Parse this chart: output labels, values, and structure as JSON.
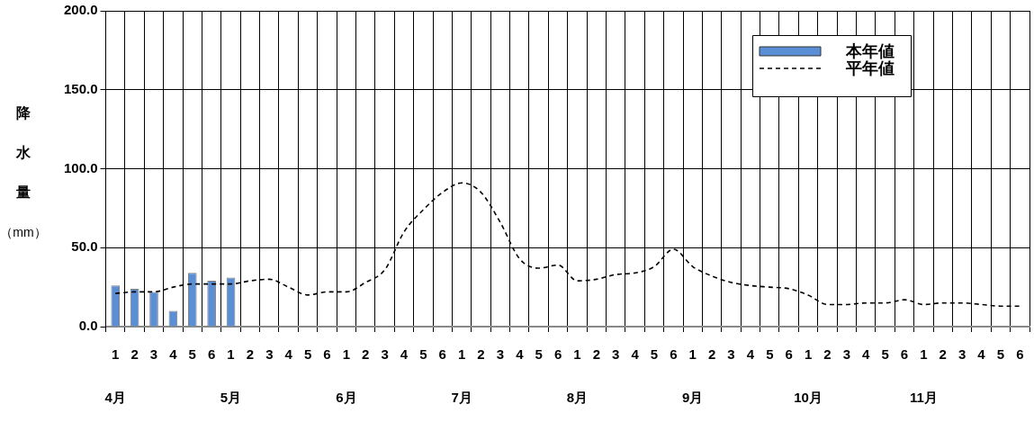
{
  "chart_data": {
    "type": "bar",
    "ylabel": "降水量（mm）",
    "categories": [
      "1\n4月",
      "2",
      "3",
      "4",
      "5",
      "6",
      "1\n5月",
      "2",
      "3",
      "4",
      "5",
      "6",
      "1\n6月",
      "2",
      "3",
      "4",
      "5",
      "6",
      "1\n7月",
      "2",
      "3",
      "4",
      "5",
      "6",
      "1\n8月",
      "2",
      "3",
      "4",
      "5",
      "6",
      "1\n9月",
      "2",
      "3",
      "4",
      "5",
      "6",
      "1\n10月",
      "2",
      "3",
      "4",
      "5",
      "6",
      "1\n11月",
      "2",
      "3",
      "4",
      "5",
      "6"
    ],
    "series": [
      {
        "name": "本年値",
        "color": "#5b8fd5",
        "values": [
          26,
          24,
          22,
          10,
          34,
          29,
          31,
          null,
          null,
          null,
          null,
          null,
          null,
          null,
          null,
          null,
          null,
          null,
          null,
          null,
          null,
          null,
          null,
          null,
          null,
          null,
          null,
          null,
          null,
          null,
          null,
          null,
          null,
          null,
          null,
          null,
          null,
          null,
          null,
          null,
          null,
          null,
          null,
          null,
          null,
          null,
          null,
          null
        ]
      },
      {
        "name": "平年値",
        "type": "line",
        "color": "#000000",
        "line_style": "dashed",
        "marker": "none",
        "values": [
          21,
          22,
          22,
          25,
          27,
          27,
          27,
          29,
          30,
          25,
          20,
          22,
          22,
          28,
          36,
          60,
          74,
          85,
          91,
          85,
          66,
          43,
          37,
          39,
          29,
          30,
          33,
          34,
          38,
          49,
          38,
          32,
          28,
          26,
          25,
          24,
          20,
          14,
          14,
          15,
          15,
          17,
          14,
          15,
          15,
          14,
          13,
          13
        ]
      }
    ],
    "ylim": [
      0,
      200
    ],
    "yticks": [
      {
        "value": 0,
        "label": "0.0"
      },
      {
        "value": 50,
        "label": "50.0"
      },
      {
        "value": 100,
        "label": "100.0"
      },
      {
        "value": 150,
        "label": "150.0"
      },
      {
        "value": 200,
        "label": "200.0"
      }
    ],
    "grid": true,
    "legend": "top right"
  }
}
